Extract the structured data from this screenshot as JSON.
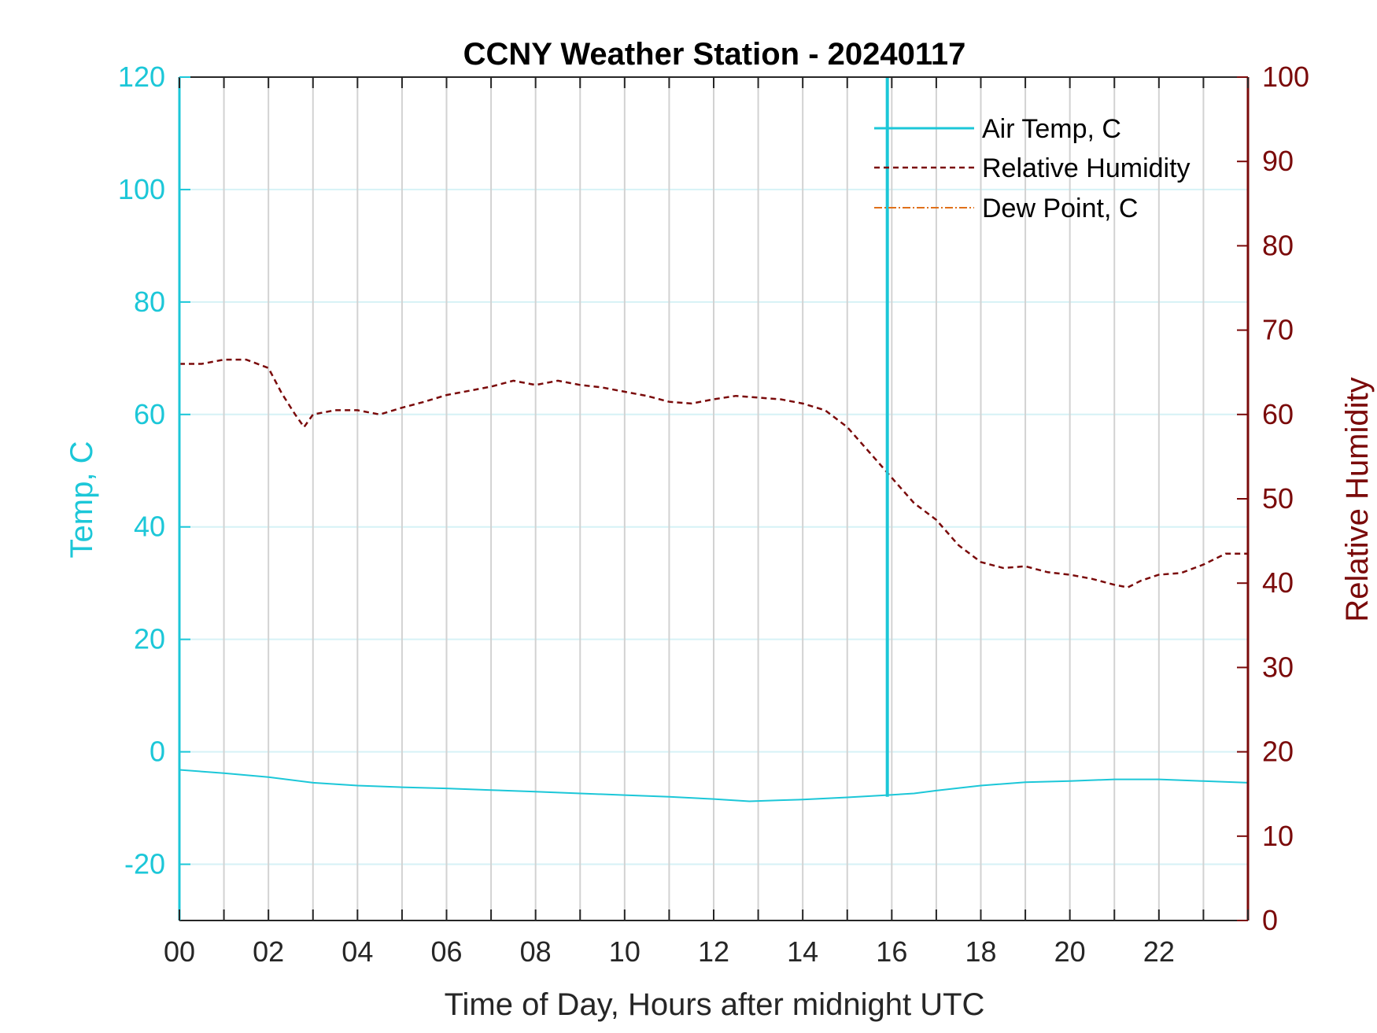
{
  "chart_data": {
    "type": "line",
    "title": "CCNY Weather Station - 20240117",
    "xlabel": "Time of Day, Hours after midnight UTC",
    "ylabel_left": "Temp, C",
    "ylabel_right": "Relative Humidity",
    "xlim": [
      0,
      24
    ],
    "ylim_left": [
      -30,
      120
    ],
    "ylim_right": [
      0,
      100
    ],
    "x_ticks": [
      0,
      2,
      4,
      6,
      8,
      10,
      12,
      14,
      16,
      18,
      20,
      22
    ],
    "x_tick_labels": [
      "00",
      "02",
      "04",
      "06",
      "08",
      "10",
      "12",
      "14",
      "16",
      "18",
      "20",
      "22"
    ],
    "y_left_ticks": [
      -20,
      0,
      20,
      40,
      60,
      80,
      100,
      120
    ],
    "y_left_tick_labels": [
      "-20",
      "0",
      "20",
      "40",
      "60",
      "80",
      "100",
      "120"
    ],
    "y_right_ticks": [
      0,
      10,
      20,
      30,
      40,
      50,
      60,
      70,
      80,
      90,
      100
    ],
    "y_right_tick_labels": [
      "0",
      "10",
      "20",
      "30",
      "40",
      "50",
      "60",
      "70",
      "80",
      "90",
      "100"
    ],
    "grid": true,
    "legend_position": "top-right",
    "colors": {
      "temp": "#1CC7D8",
      "humidity": "#7A0A0A",
      "dewpoint": "#E0701A",
      "vgrid": "#D2D2D2",
      "hgrid": "#D6F2F6",
      "axis": "#262626"
    },
    "series": [
      {
        "name": "Air Temp, C",
        "axis": "left",
        "style": "solid",
        "x": [
          0,
          1,
          2,
          3,
          4,
          5,
          6,
          7,
          8,
          9,
          10,
          11,
          12,
          12.8,
          13.5,
          14,
          15,
          15.9,
          16.5,
          17,
          18,
          19,
          20,
          21,
          22,
          23,
          24
        ],
        "y": [
          -3.2,
          -3.8,
          -4.5,
          -5.5,
          -6.0,
          -6.3,
          -6.5,
          -6.8,
          -7.1,
          -7.4,
          -7.7,
          -8.0,
          -8.4,
          -8.8,
          -8.6,
          -8.5,
          -8.1,
          -7.7,
          -7.4,
          -6.9,
          -6.0,
          -5.4,
          -5.2,
          -4.9,
          -4.9,
          -5.2,
          -5.5
        ]
      },
      {
        "name": "Relative Humidity",
        "axis": "right",
        "style": "dashed",
        "x": [
          0,
          0.5,
          1,
          1.5,
          2,
          2.3,
          2.6,
          2.8,
          3,
          3.5,
          4,
          4.5,
          5,
          5.5,
          6,
          6.5,
          7,
          7.5,
          8,
          8.5,
          9,
          9.5,
          10,
          10.5,
          11,
          11.5,
          12,
          12.5,
          13,
          13.5,
          14,
          14.5,
          15,
          15.5,
          16,
          16.5,
          17,
          17.5,
          18,
          18.5,
          19,
          19.5,
          20,
          20.5,
          21,
          21.3,
          21.6,
          22,
          22.5,
          23,
          23.5,
          24
        ],
        "y": [
          66,
          66,
          66.5,
          66.5,
          65.5,
          62.5,
          60,
          58.5,
          60,
          60.5,
          60.5,
          60,
          60.8,
          61.5,
          62.3,
          62.8,
          63.3,
          64,
          63.5,
          64,
          63.5,
          63.2,
          62.7,
          62.2,
          61.5,
          61.3,
          61.8,
          62.2,
          62,
          61.8,
          61.3,
          60.5,
          58.5,
          55.5,
          52.5,
          49.5,
          47.5,
          44.5,
          42.5,
          41.8,
          42,
          41.3,
          41,
          40.5,
          39.8,
          39.5,
          40.3,
          41,
          41.2,
          42.2,
          43.5,
          43.5
        ]
      },
      {
        "name": "Dew Point, C",
        "axis": "left",
        "style": "dashdot",
        "x": [],
        "y": []
      }
    ],
    "annotations": [
      {
        "type": "vertical-line",
        "x": 15.9,
        "y_from": -8,
        "y_to": 120,
        "color": "#1CC7D8"
      }
    ]
  }
}
